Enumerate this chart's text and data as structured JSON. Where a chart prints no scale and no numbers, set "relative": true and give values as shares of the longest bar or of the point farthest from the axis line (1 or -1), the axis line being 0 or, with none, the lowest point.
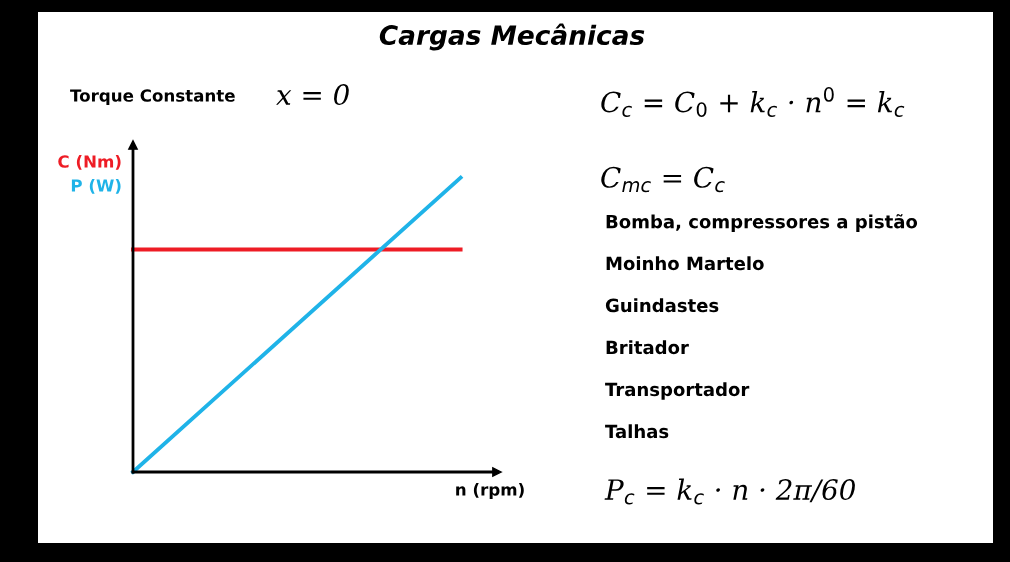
{
  "chart_data": {
    "type": "line",
    "title": "Cargas Mecânicas",
    "xlabel": "n (rpm)",
    "relative": true,
    "categories": [
      null,
      null
    ],
    "series": [
      {
        "name": "C (Nm)",
        "color": "#ee1c25",
        "values": [
          0.756,
          0.756
        ]
      },
      {
        "name": "P (W)",
        "color": "#1fb3e8",
        "values": [
          0,
          1
        ]
      }
    ],
    "annotations": [
      "Torque Constante",
      "x = 0",
      "C$_{c}$ = C$_{0}$ + k$_{c}$ · n$^{0}$ = k$_{c}$",
      "C$_{mc}$ = C$_{c}$",
      "Bomba, compressores a pistão",
      "Moinho Martelo",
      "Guindastes",
      "Britador",
      "Transportador",
      "Talhas",
      "P$_{c}$ = k$_{c}$ · n · 2π/60"
    ],
    "legend": false,
    "marker": "none",
    "line_style": "solid"
  }
}
